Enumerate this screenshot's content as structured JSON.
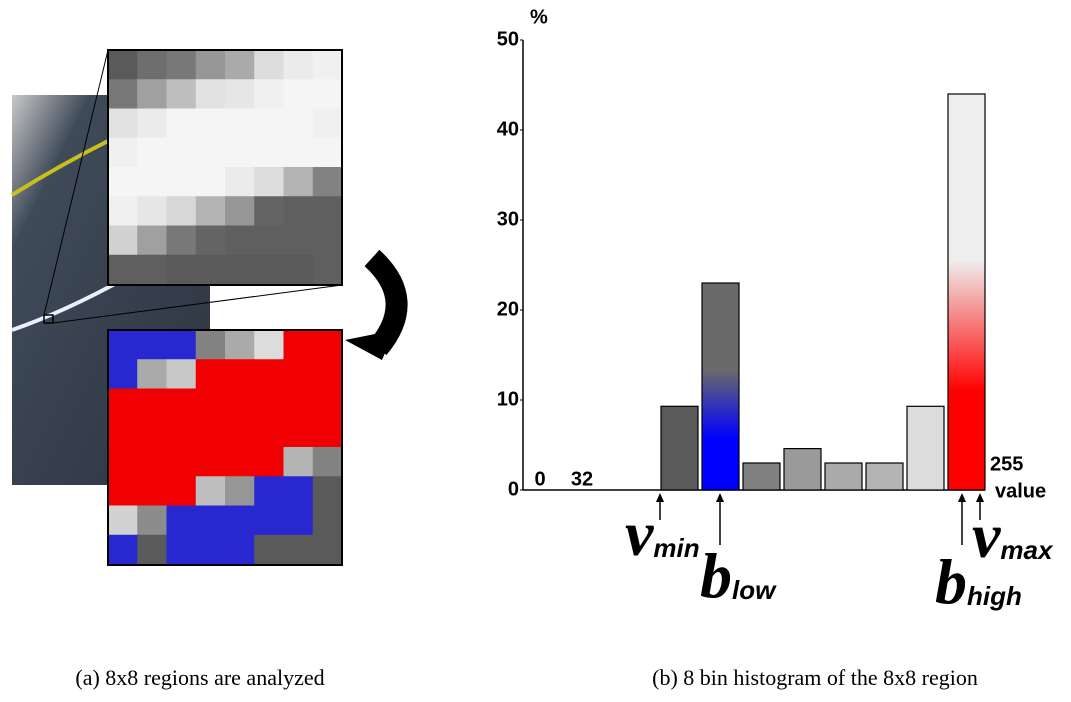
{
  "chart_data": {
    "type": "bar",
    "categories": [
      null,
      null,
      null,
      null,
      null,
      null,
      null,
      null
    ],
    "values": [
      9.3,
      23,
      3,
      4.6,
      3,
      3,
      9.3,
      44
    ],
    "colors": [
      "#5a5a5a",
      [
        "#6a6a6a",
        "#0000ff"
      ],
      "#808080",
      "#9a9a9a",
      "#aaaaaa",
      "#b4b4b4",
      "#dcdcdc",
      [
        "#eeeeee",
        "#ff0000"
      ]
    ],
    "ylim": [
      0,
      50
    ],
    "yticks": [
      0,
      10,
      20,
      30,
      40,
      50
    ],
    "y_label": "%",
    "x_label": "value",
    "x_axis_labels": [
      "0",
      "32",
      "255"
    ],
    "annotations": [
      {
        "text": "v",
        "sub": "min"
      },
      {
        "text": "b",
        "sub": "low"
      },
      {
        "text": "b",
        "sub": "high"
      },
      {
        "text": "v",
        "sub": "max"
      }
    ]
  },
  "captions": [
    "(a) 8x8 regions are analyzed",
    "(b) 8 bin histogram of the 8x8 region"
  ]
}
